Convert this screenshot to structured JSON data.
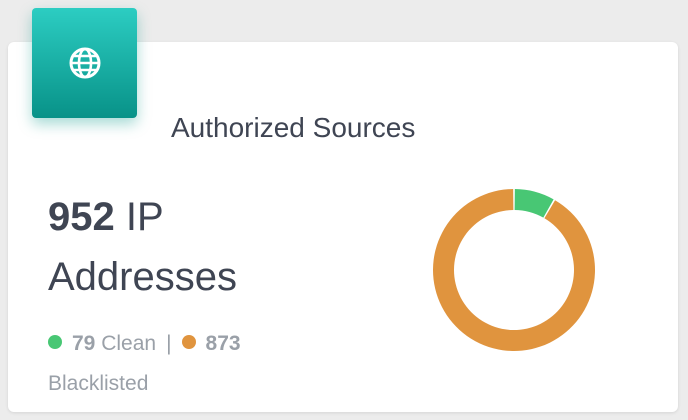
{
  "card": {
    "title": "Authorized Sources",
    "icon": "globe-icon",
    "accent_color": "#1fb5ab"
  },
  "stat": {
    "count": "952",
    "unit_line1": "IP",
    "unit_line2": "Addresses"
  },
  "legend": {
    "clean_count": "79",
    "clean_label": "Clean",
    "separator": "|",
    "blacklisted_count": "873",
    "blacklisted_label": "Blacklisted"
  },
  "colors": {
    "clean": "#48c774",
    "blacklisted": "#e0943e"
  },
  "chart_data": {
    "type": "pie",
    "variant": "donut",
    "categories": [
      "Clean",
      "Blacklisted"
    ],
    "values": [
      79,
      873
    ],
    "colors": [
      "#48c774",
      "#e0943e"
    ]
  }
}
